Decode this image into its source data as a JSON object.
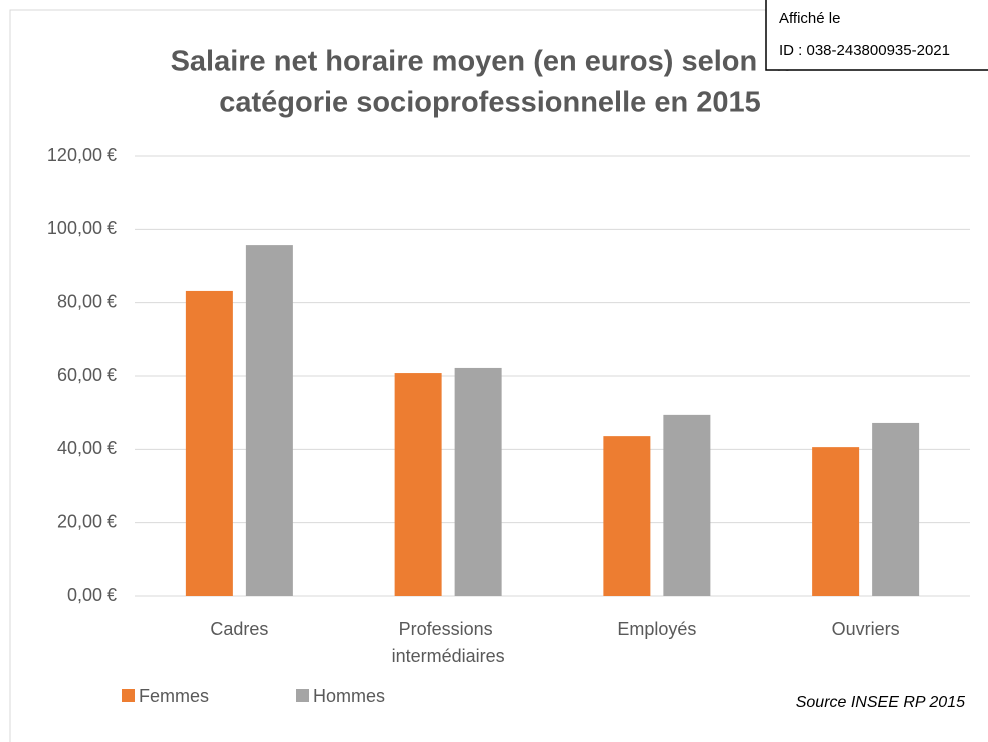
{
  "chart_data": {
    "type": "bar",
    "title": [
      "Salaire net horaire moyen (en euros) selon la",
      "catégorie socioprofessionnelle en 2015"
    ],
    "categories": [
      "Cadres",
      "Professions intermédiaires",
      "Employés",
      "Ouvriers"
    ],
    "series": [
      {
        "name": "Femmes",
        "color": "#ed7d31",
        "values": [
          83.2,
          60.8,
          43.6,
          40.6
        ]
      },
      {
        "name": "Hommes",
        "color": "#a5a5a5",
        "values": [
          95.7,
          62.2,
          49.4,
          47.2
        ]
      }
    ],
    "ylim": [
      0,
      120
    ],
    "yticks": [
      {
        "value": 0,
        "label": "0,00 €"
      },
      {
        "value": 20,
        "label": "20,00 €"
      },
      {
        "value": 40,
        "label": "40,00 €"
      },
      {
        "value": 60,
        "label": "60,00 €"
      },
      {
        "value": 80,
        "label": "80,00 €"
      },
      {
        "value": 100,
        "label": "100,00 €"
      },
      {
        "value": 120,
        "label": "120,00 €"
      }
    ],
    "grid": true,
    "legend": "bottom-left",
    "source": "Source INSEE RP 2015"
  },
  "stamp": {
    "line1": "Affiché le",
    "line2": "ID : 038-243800935-2021"
  }
}
